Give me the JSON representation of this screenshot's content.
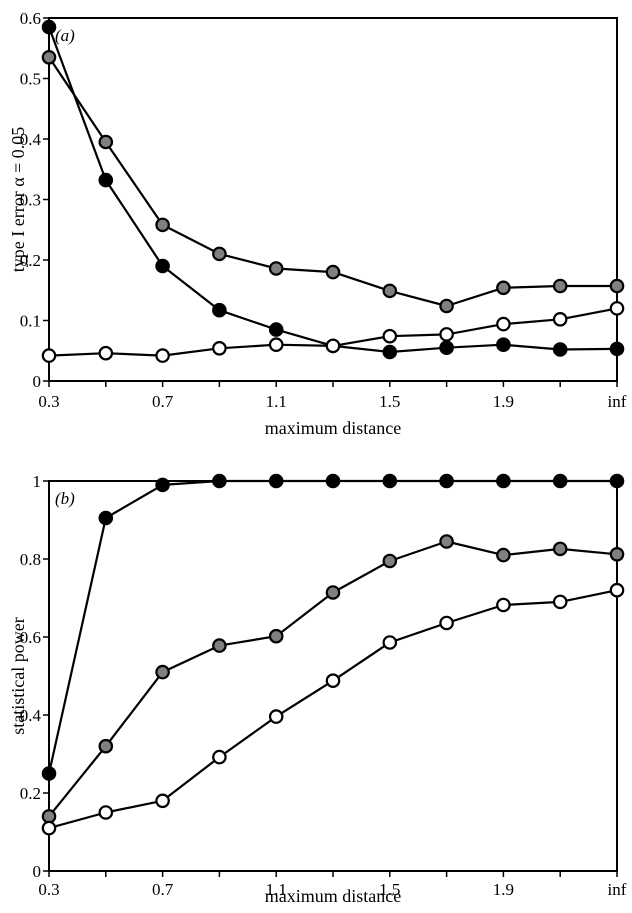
{
  "chart_data": [
    {
      "type": "line",
      "panel_label": "(a)",
      "xlabel": "maximum distance",
      "ylabel": "type I error α = 0.05",
      "x_tick_labels": [
        "0.3",
        "0.7",
        "1.1",
        "1.5",
        "1.9",
        "inf"
      ],
      "y_tick_labels": [
        "0",
        "0.1",
        "0.2",
        "0.3",
        "0.4",
        "0.5",
        "0.6"
      ],
      "ylim": [
        0,
        0.6
      ],
      "x": [
        "0.3",
        "0.5",
        "0.7",
        "0.9",
        "1.1",
        "1.3",
        "1.5",
        "1.7",
        "1.9",
        "2.1",
        "inf"
      ],
      "series": [
        {
          "marker": "filled",
          "color": "#000000",
          "values": [
            0.585,
            0.332,
            0.19,
            0.117,
            0.085,
            0.058,
            0.048,
            0.055,
            0.06,
            0.052,
            0.053
          ]
        },
        {
          "marker": "gray",
          "color": "#808080",
          "values": [
            0.535,
            0.395,
            0.258,
            0.21,
            0.186,
            0.18,
            0.149,
            0.124,
            0.154,
            0.157,
            0.157
          ]
        },
        {
          "marker": "open",
          "color": "#ffffff",
          "values": [
            0.042,
            0.046,
            0.042,
            0.054,
            0.06,
            0.058,
            0.074,
            0.077,
            0.094,
            0.102,
            0.12
          ]
        }
      ]
    },
    {
      "type": "line",
      "panel_label": "(b)",
      "xlabel": "maximum distance",
      "ylabel": "statistical power",
      "x_tick_labels": [
        "0.3",
        "0.7",
        "1.1",
        "1.5",
        "1.9",
        "inf"
      ],
      "y_tick_labels": [
        "0",
        "0.2",
        "0.4",
        "0.6",
        "0.8",
        "1"
      ],
      "ylim": [
        0,
        1
      ],
      "x": [
        "0.3",
        "0.5",
        "0.7",
        "0.9",
        "1.1",
        "1.3",
        "1.5",
        "1.7",
        "1.9",
        "2.1",
        "inf"
      ],
      "series": [
        {
          "marker": "filled",
          "color": "#000000",
          "values": [
            0.25,
            0.905,
            0.99,
            1.0,
            1.0,
            1.0,
            1.0,
            1.0,
            1.0,
            1.0,
            1.0
          ]
        },
        {
          "marker": "gray",
          "color": "#808080",
          "values": [
            0.14,
            0.32,
            0.51,
            0.578,
            0.602,
            0.714,
            0.795,
            0.845,
            0.81,
            0.826,
            0.812
          ]
        },
        {
          "marker": "open",
          "color": "#ffffff",
          "values": [
            0.11,
            0.15,
            0.18,
            0.292,
            0.396,
            0.488,
            0.586,
            0.636,
            0.682,
            0.69,
            0.72
          ]
        }
      ]
    }
  ]
}
